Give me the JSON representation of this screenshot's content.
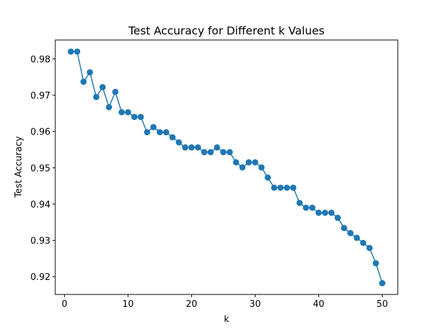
{
  "chart_data": {
    "type": "line",
    "title": "Test Accuracy for Different k Values",
    "xlabel": "k",
    "ylabel": "Test Accuracy",
    "xlim": [
      -1.45,
      52.45
    ],
    "ylim": [
      0.9151,
      0.9852
    ],
    "xticks": [
      0,
      10,
      20,
      30,
      40,
      50
    ],
    "yticks": [
      0.92,
      0.93,
      0.94,
      0.95,
      0.96,
      0.97,
      0.98
    ],
    "grid": false,
    "color": "#1f77b4",
    "marker": "circle",
    "series": [
      {
        "x": [
          1,
          2,
          3,
          4,
          5,
          6,
          7,
          8,
          9,
          10,
          11,
          12,
          13,
          14,
          15,
          16,
          17,
          18,
          19,
          20,
          21,
          22,
          23,
          24,
          25,
          26,
          27,
          28,
          29,
          30,
          31,
          32,
          33,
          34,
          35,
          36,
          37,
          38,
          39,
          40,
          41,
          42,
          43,
          44,
          45,
          46,
          47,
          48,
          49,
          50
        ],
        "values": [
          0.982,
          0.982,
          0.9737,
          0.9763,
          0.9695,
          0.9722,
          0.9667,
          0.9709,
          0.9653,
          0.9653,
          0.964,
          0.964,
          0.9598,
          0.9612,
          0.9598,
          0.9598,
          0.9584,
          0.957,
          0.9556,
          0.9556,
          0.9556,
          0.9543,
          0.9543,
          0.9556,
          0.9543,
          0.9543,
          0.9515,
          0.9501,
          0.9515,
          0.9515,
          0.9501,
          0.9473,
          0.9445,
          0.9445,
          0.9445,
          0.9445,
          0.9403,
          0.939,
          0.939,
          0.9376,
          0.9376,
          0.9376,
          0.9362,
          0.9334,
          0.932,
          0.9307,
          0.9293,
          0.9279,
          0.9237,
          0.9182
        ]
      }
    ]
  }
}
